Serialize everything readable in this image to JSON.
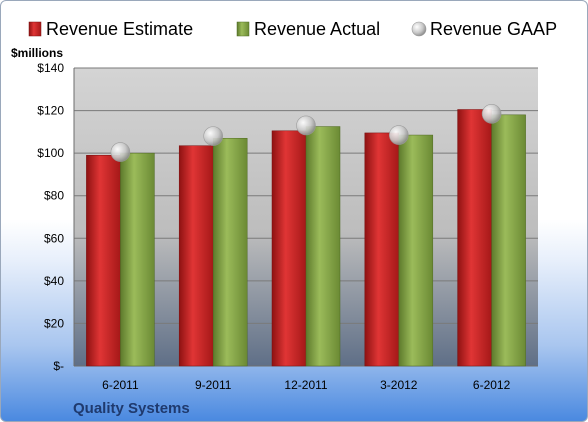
{
  "chart_data": {
    "type": "bar",
    "unit_label": "$millions",
    "company": "Quality Systems",
    "categories": [
      "6-2011",
      "9-2011",
      "12-2011",
      "3-2012",
      "6-2012"
    ],
    "series": [
      {
        "name": "Revenue Estimate",
        "kind": "bar",
        "color": "#d42a2a",
        "values": [
          99,
          103.5,
          110.5,
          109.5,
          120.5
        ]
      },
      {
        "name": "Revenue Actual",
        "kind": "bar",
        "color": "#8fac4e",
        "values": [
          100,
          107,
          112.5,
          108.5,
          118
        ]
      },
      {
        "name": "Revenue GAAP",
        "kind": "marker",
        "color": "#c8c8c8",
        "values": [
          100.5,
          108,
          113,
          108.5,
          118.5
        ]
      }
    ],
    "ylim": [
      0,
      140
    ],
    "yticks": [
      0,
      20,
      40,
      60,
      80,
      100,
      120,
      140
    ],
    "ytick_labels": [
      "$-",
      "$20",
      "$40",
      "$60",
      "$80",
      "$100",
      "$120",
      "$140"
    ],
    "grid": true,
    "legend_position": "top"
  }
}
